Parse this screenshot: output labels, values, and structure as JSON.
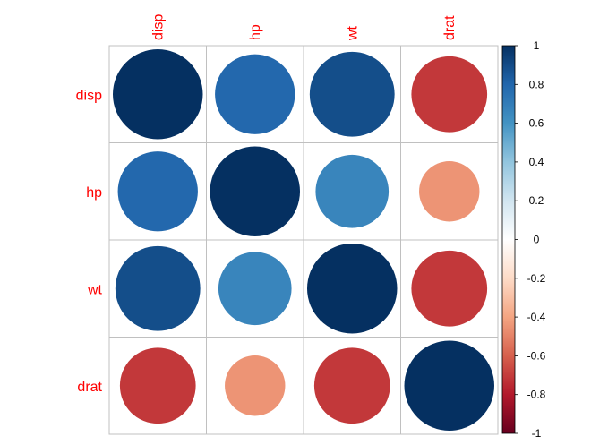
{
  "chart_data": {
    "type": "heatmap",
    "title": "",
    "xlabel": "",
    "ylabel": "",
    "method": "circle",
    "variables": [
      "disp",
      "hp",
      "wt",
      "drat"
    ],
    "matrix": [
      [
        1.0,
        0.79,
        0.89,
        -0.71
      ],
      [
        0.79,
        1.0,
        0.66,
        -0.45
      ],
      [
        0.89,
        0.66,
        1.0,
        -0.71
      ],
      [
        -0.71,
        -0.45,
        -0.71,
        1.0
      ]
    ],
    "colorbar": {
      "range": [
        -1,
        1
      ],
      "ticks": [
        "1",
        "0.8",
        "0.6",
        "0.4",
        "0.2",
        "0",
        "-0.2",
        "-0.4",
        "-0.6",
        "-0.8",
        "-1"
      ],
      "colors": [
        "#67001f",
        "#b2182b",
        "#d6604d",
        "#f4a582",
        "#fddbc7",
        "#ffffff",
        "#d1e5f0",
        "#92c5de",
        "#4393c3",
        "#2166ac",
        "#053061"
      ]
    },
    "label_color": "#ff0000",
    "grid": true
  }
}
